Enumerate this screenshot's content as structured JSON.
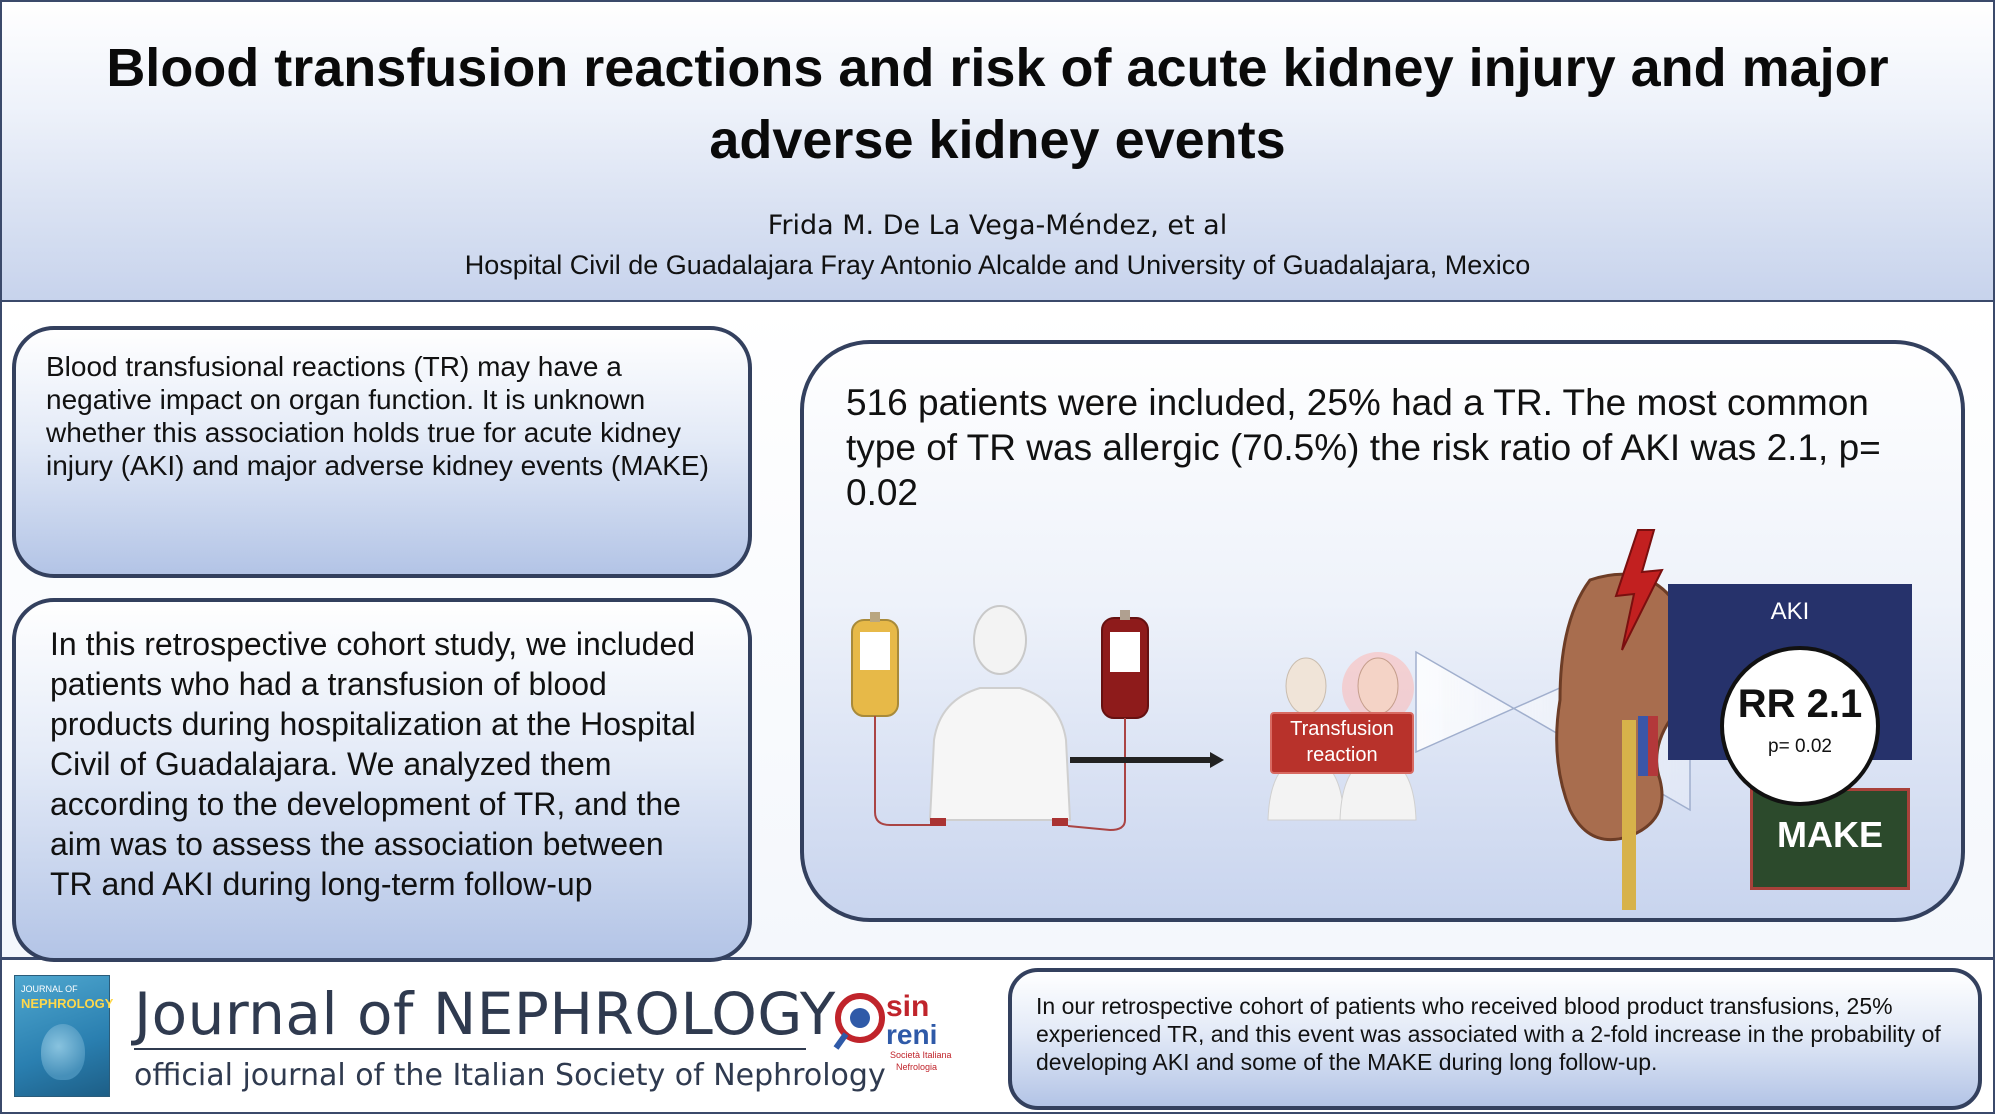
{
  "header": {
    "title": "Blood transfusion reactions and risk of acute kidney injury and major adverse kidney events",
    "authors": "Frida M. De La Vega-Méndez, et al",
    "affiliation": "Hospital Civil de Guadalajara Fray Antonio Alcalde and University of Guadalajara, Mexico"
  },
  "intro": {
    "text": "Blood transfusional reactions (TR) may have a negative impact on organ function. It is unknown whether this association holds true for acute kidney injury (AKI) and major adverse kidney events (MAKE)"
  },
  "methods": {
    "text": "In this retrospective cohort study, we included patients who had a transfusion of blood products during hospitalization at the Hospital Civil of Guadalajara. We analyzed them according to the development of TR, and the aim was to assess the association between TR and AKI during long-term follow-up"
  },
  "results": {
    "text": "516 patients were included, 25% had a TR. The most common type of TR was allergic (70.5%) the risk ratio of AKI was 2.1, p= 0.02"
  },
  "illustration": {
    "transfusion_label": "Transfusion reaction",
    "aki_label": "AKI",
    "rr_label": "RR 2.1",
    "p_label": "p= 0.02",
    "make_label": "MAKE"
  },
  "footer": {
    "journal_name": "Journal of NEPHROLOGY",
    "journal_sub": "official journal of the Italian Society of Nephrology",
    "cover_small": "JOURNAL OF",
    "cover_big": "NEPHROLOGY",
    "logo_text_1": "sin",
    "logo_text_2": "reni",
    "logo_sub_1": "Società Italiana",
    "logo_sub_2": "Nefrologia",
    "conclusion": "In our retrospective cohort of patients who received blood product transfusions, 25% experienced TR, and this event was associated with a 2-fold increase in the probability of developing AKI and some of the MAKE during long follow-up."
  },
  "colors": {
    "border": "#33405e",
    "card_gradient_bottom": "#b3c4e6",
    "aki_box": "#26326b",
    "make_box": "#2c4a2c",
    "transfusion_box": "#b8322b"
  }
}
